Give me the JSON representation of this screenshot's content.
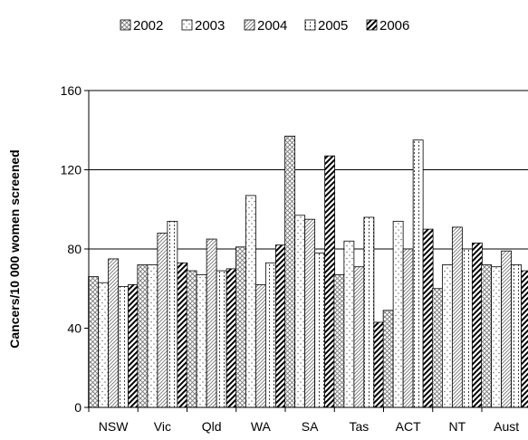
{
  "chart_data": {
    "type": "bar",
    "title": "",
    "xlabel": "",
    "ylabel": "Cancers/10 000 women screened",
    "ylim": [
      0,
      160
    ],
    "yticks": [
      0,
      40,
      80,
      120,
      160
    ],
    "grid": true,
    "legend_position": "top",
    "categories": [
      "NSW",
      "Vic",
      "Qld",
      "WA",
      "SA",
      "Tas",
      "ACT",
      "NT",
      "Aust"
    ],
    "series": [
      {
        "name": "2002",
        "pattern": "cross-hatch",
        "values": [
          66,
          72,
          69,
          81,
          137,
          67,
          49,
          60,
          72
        ]
      },
      {
        "name": "2003",
        "pattern": "dots",
        "values": [
          63,
          72,
          67,
          107,
          97,
          84,
          94,
          72,
          71
        ]
      },
      {
        "name": "2004",
        "pattern": "diagonal-fine",
        "values": [
          75,
          88,
          85,
          62,
          95,
          71,
          80,
          91,
          79
        ]
      },
      {
        "name": "2005",
        "pattern": "dotted-lines",
        "values": [
          61,
          94,
          69,
          73,
          78,
          96,
          135,
          80,
          72
        ]
      },
      {
        "name": "2006",
        "pattern": "diagonal-bold",
        "values": [
          62,
          73,
          70,
          82,
          127,
          43,
          90,
          83,
          69
        ]
      }
    ]
  }
}
